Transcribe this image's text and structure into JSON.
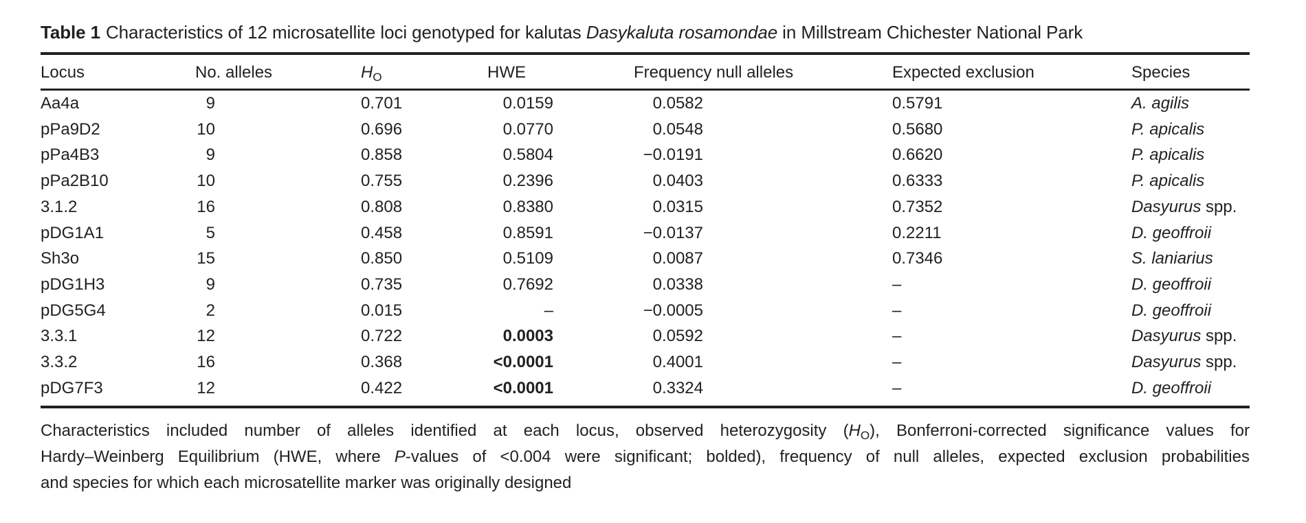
{
  "table": {
    "label": "Table 1",
    "title_pre": "Characteristics of 12 microsatellite loci genotyped for kalutas ",
    "title_italic": "Dasykaluta rosamondae",
    "title_post": " in Millstream Chichester National Park",
    "columns": {
      "locus": "Locus",
      "alleles": "No. alleles",
      "ho_main": "H",
      "ho_sub": "O",
      "hwe": "HWE",
      "freq_null": "Frequency null alleles",
      "expected_exclusion": "Expected exclusion",
      "species": "Species"
    },
    "rows": [
      {
        "locus": "Aa4a",
        "alleles": "9",
        "ho": "0.701",
        "hwe": "0.0159",
        "hwe_bold": false,
        "freq": "0.0582",
        "excl": "0.5791",
        "sp_it": "A. agilis",
        "sp_rest": ""
      },
      {
        "locus": "pPa9D2",
        "alleles": "10",
        "ho": "0.696",
        "hwe": "0.0770",
        "hwe_bold": false,
        "freq": "0.0548",
        "excl": "0.5680",
        "sp_it": "P. apicalis",
        "sp_rest": ""
      },
      {
        "locus": "pPa4B3",
        "alleles": "9",
        "ho": "0.858",
        "hwe": "0.5804",
        "hwe_bold": false,
        "freq": "−0.0191",
        "excl": "0.6620",
        "sp_it": "P. apicalis",
        "sp_rest": ""
      },
      {
        "locus": "pPa2B10",
        "alleles": "10",
        "ho": "0.755",
        "hwe": "0.2396",
        "hwe_bold": false,
        "freq": "0.0403",
        "excl": "0.6333",
        "sp_it": "P. apicalis",
        "sp_rest": ""
      },
      {
        "locus": "3.1.2",
        "alleles": "16",
        "ho": "0.808",
        "hwe": "0.8380",
        "hwe_bold": false,
        "freq": "0.0315",
        "excl": "0.7352",
        "sp_it": "Dasyurus",
        "sp_rest": " spp."
      },
      {
        "locus": "pDG1A1",
        "alleles": "5",
        "ho": "0.458",
        "hwe": "0.8591",
        "hwe_bold": false,
        "freq": "−0.0137",
        "excl": "0.2211",
        "sp_it": "D. geoffroii",
        "sp_rest": ""
      },
      {
        "locus": "Sh3o",
        "alleles": "15",
        "ho": "0.850",
        "hwe": "0.5109",
        "hwe_bold": false,
        "freq": "0.0087",
        "excl": "0.7346",
        "sp_it": "S. laniarius",
        "sp_rest": ""
      },
      {
        "locus": "pDG1H3",
        "alleles": "9",
        "ho": "0.735",
        "hwe": "0.7692",
        "hwe_bold": false,
        "freq": "0.0338",
        "excl": "–",
        "sp_it": "D. geoffroii",
        "sp_rest": ""
      },
      {
        "locus": "pDG5G4",
        "alleles": "2",
        "ho": "0.015",
        "hwe": "–",
        "hwe_bold": false,
        "freq": "−0.0005",
        "excl": "–",
        "sp_it": "D. geoffroii",
        "sp_rest": ""
      },
      {
        "locus": "3.3.1",
        "alleles": "12",
        "ho": "0.722",
        "hwe": "0.0003",
        "hwe_bold": true,
        "freq": "0.0592",
        "excl": "–",
        "sp_it": "Dasyurus",
        "sp_rest": " spp."
      },
      {
        "locus": "3.3.2",
        "alleles": "16",
        "ho": "0.368",
        "hwe": "<0.0001",
        "hwe_bold": true,
        "freq": "0.4001",
        "excl": "–",
        "sp_it": "Dasyurus",
        "sp_rest": " spp."
      },
      {
        "locus": "pDG7F3",
        "alleles": "12",
        "ho": "0.422",
        "hwe": "<0.0001",
        "hwe_bold": true,
        "freq": "0.3324",
        "excl": "–",
        "sp_it": "D. geoffroii",
        "sp_rest": ""
      }
    ],
    "caption": {
      "l1_a": "Characteristics included number of alleles identified at each locus, observed heterozygosity (",
      "l1_h": "H",
      "l1_sub": "O",
      "l1_b": "), Bonferroni-corrected significance values for",
      "l2_a": "Hardy–Weinberg Equilibrium (HWE, where ",
      "l2_p": "P",
      "l2_b": "-values of <0.004 were significant; bolded), frequency of null alleles, expected exclusion probabilities",
      "l3": "and species for which each microsatellite marker was originally designed"
    }
  },
  "colors": {
    "text": "#231f20",
    "background": "#ffffff"
  }
}
